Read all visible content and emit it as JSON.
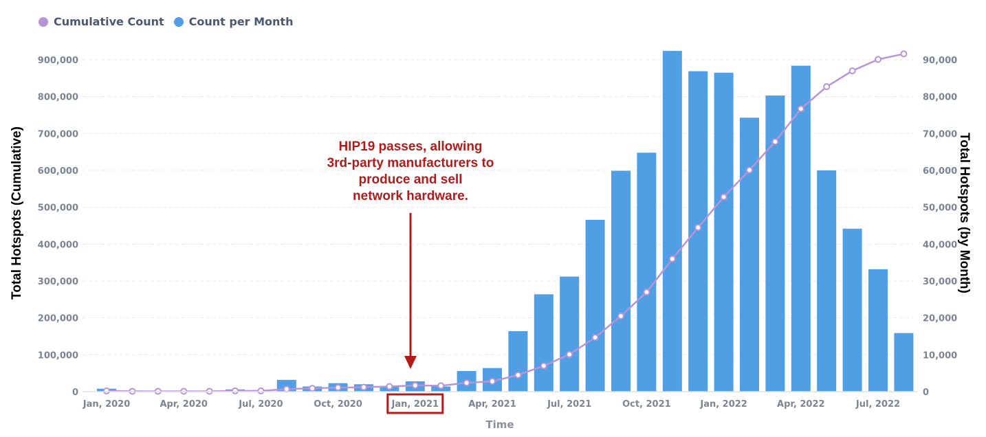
{
  "legend": [
    {
      "label": "Cumulative Count",
      "color": "#b894d6"
    },
    {
      "label": "Count per Month",
      "color": "#509ee3"
    }
  ],
  "chart_data": {
    "type": "bar",
    "xlabel": "Time",
    "ylabel_left": "Total Hotspots (Cumulative)",
    "ylabel_right": "Total Hotspots (by Month)",
    "ylim_left": [
      0,
      900000
    ],
    "ylim_right": [
      0,
      90000
    ],
    "yticks_left": [
      "0",
      "100,000",
      "200,000",
      "300,000",
      "400,000",
      "500,000",
      "600,000",
      "700,000",
      "800,000",
      "900,000"
    ],
    "yticks_right": [
      "0",
      "10,000",
      "20,000",
      "30,000",
      "40,000",
      "50,000",
      "60,000",
      "70,000",
      "80,000",
      "90,000"
    ],
    "categories": [
      "Jan, 2020",
      "Feb, 2020",
      "Mar, 2020",
      "Apr, 2020",
      "May, 2020",
      "Jun, 2020",
      "Jul, 2020",
      "Aug, 2020",
      "Sep, 2020",
      "Oct, 2020",
      "Nov, 2020",
      "Dec, 2020",
      "Jan, 2021",
      "Feb, 2021",
      "Mar, 2021",
      "Apr, 2021",
      "May, 2021",
      "Jun, 2021",
      "Jul, 2021",
      "Aug, 2021",
      "Sep, 2021",
      "Oct, 2021",
      "Nov, 2021",
      "Dec, 2021",
      "Jan, 2022",
      "Feb, 2022",
      "Mar, 2022",
      "Apr, 2022",
      "May, 2022",
      "Jun, 2022",
      "Jul, 2022",
      "Aug, 2022"
    ],
    "xtick_labels": [
      {
        "index": 0,
        "label": "Jan, 2020"
      },
      {
        "index": 3,
        "label": "Apr, 2020"
      },
      {
        "index": 6,
        "label": "Jul, 2020"
      },
      {
        "index": 9,
        "label": "Oct, 2020"
      },
      {
        "index": 12,
        "label": "Jan, 2021",
        "highlighted": true
      },
      {
        "index": 15,
        "label": "Apr, 2021"
      },
      {
        "index": 18,
        "label": "Jul, 2021"
      },
      {
        "index": 21,
        "label": "Oct, 2021"
      },
      {
        "index": 24,
        "label": "Jan, 2022"
      },
      {
        "index": 27,
        "label": "Apr, 2022"
      },
      {
        "index": 30,
        "label": "Jul, 2022"
      }
    ],
    "series": [
      {
        "name": "Count per Month",
        "axis": "right",
        "type": "bar",
        "color": "#509ee3",
        "values": [
          800,
          300,
          200,
          200,
          200,
          600,
          400,
          3200,
          1400,
          2300,
          2000,
          1400,
          2800,
          1400,
          5600,
          6400,
          16400,
          26400,
          31200,
          46600,
          59900,
          64800,
          92400,
          86900,
          86500,
          74300,
          80300,
          88400,
          60000,
          44200,
          33200,
          15900
        ]
      },
      {
        "name": "Cumulative Count",
        "axis": "left",
        "type": "line",
        "color": "#b894d6",
        "values": [
          2000,
          1000,
          1000,
          1000,
          1000,
          2000,
          2000,
          7000,
          9000,
          11000,
          12000,
          14000,
          17000,
          16000,
          24000,
          28000,
          45000,
          70000,
          101000,
          147000,
          205000,
          270000,
          360000,
          445000,
          528000,
          601000,
          678000,
          767000,
          827000,
          870000,
          901000,
          916000
        ]
      }
    ],
    "annotation": {
      "lines": [
        "HIP19 passes, allowing",
        "3rd-party manufacturers to",
        "produce and sell",
        "network hardware."
      ],
      "color": "#b31b1b",
      "target_index": 12
    }
  }
}
